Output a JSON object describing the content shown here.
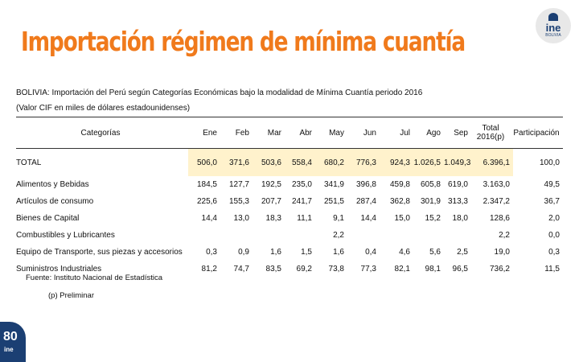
{
  "title": "Importación régimen de mínima cuantía",
  "logo_top": {
    "brand": "ine",
    "sub": "BOLIVIA"
  },
  "subtitle": "BOLIVIA: Importación del Perú según Categorías Económicas bajo la modalidad de Mínima Cuantía periodo 2016",
  "units": "(Valor CIF en miles de dólares estadounidenses)",
  "table": {
    "headers": [
      "Categorías",
      "Ene",
      "Feb",
      "Mar",
      "Abr",
      "May",
      "Jun",
      "Jul",
      "Ago",
      "Sep",
      "Total 2016(p)",
      "Participación"
    ],
    "rows": [
      {
        "label": "TOTAL",
        "values": [
          "506,0",
          "371,6",
          "503,6",
          "558,4",
          "680,2",
          "776,3",
          "924,3",
          "1.026,5",
          "1.049,3",
          "6.396,1",
          "100,0"
        ]
      },
      {
        "label": "Alimentos y Bebidas",
        "values": [
          "184,5",
          "127,7",
          "192,5",
          "235,0",
          "341,9",
          "396,8",
          "459,8",
          "605,8",
          "619,0",
          "3.163,0",
          "49,5"
        ]
      },
      {
        "label": "Artículos de consumo",
        "values": [
          "225,6",
          "155,3",
          "207,7",
          "241,7",
          "251,5",
          "287,4",
          "362,8",
          "301,9",
          "313,3",
          "2.347,2",
          "36,7"
        ]
      },
      {
        "label": "Bienes de Capital",
        "values": [
          "14,4",
          "13,0",
          "18,3",
          "11,1",
          "9,1",
          "14,4",
          "15,0",
          "15,2",
          "18,0",
          "128,6",
          "2,0"
        ]
      },
      {
        "label": "Combustibles y Lubricantes",
        "values": [
          "",
          "",
          "",
          "",
          "2,2",
          "",
          "",
          "",
          "",
          "2,2",
          "0,0"
        ]
      },
      {
        "label": "Equipo de Transporte, sus piezas y accesorios",
        "values": [
          "0,3",
          "0,9",
          "1,6",
          "1,5",
          "1,6",
          "0,4",
          "4,6",
          "5,6",
          "2,5",
          "19,0",
          "0,3"
        ]
      },
      {
        "label": "Suministros Industriales",
        "values": [
          "81,2",
          "74,7",
          "83,5",
          "69,2",
          "73,8",
          "77,3",
          "82,1",
          "98,1",
          "96,5",
          "736,2",
          "11,5"
        ]
      }
    ]
  },
  "footer": {
    "source": "Fuente: Instituto Nacional de Estadística",
    "note": "(p) Preliminar"
  },
  "logo_bottom": {
    "big": "80",
    "small": "ine"
  },
  "colors": {
    "title": "#f07a1c",
    "brand": "#1b3f73",
    "shade": "#fff2cc"
  }
}
